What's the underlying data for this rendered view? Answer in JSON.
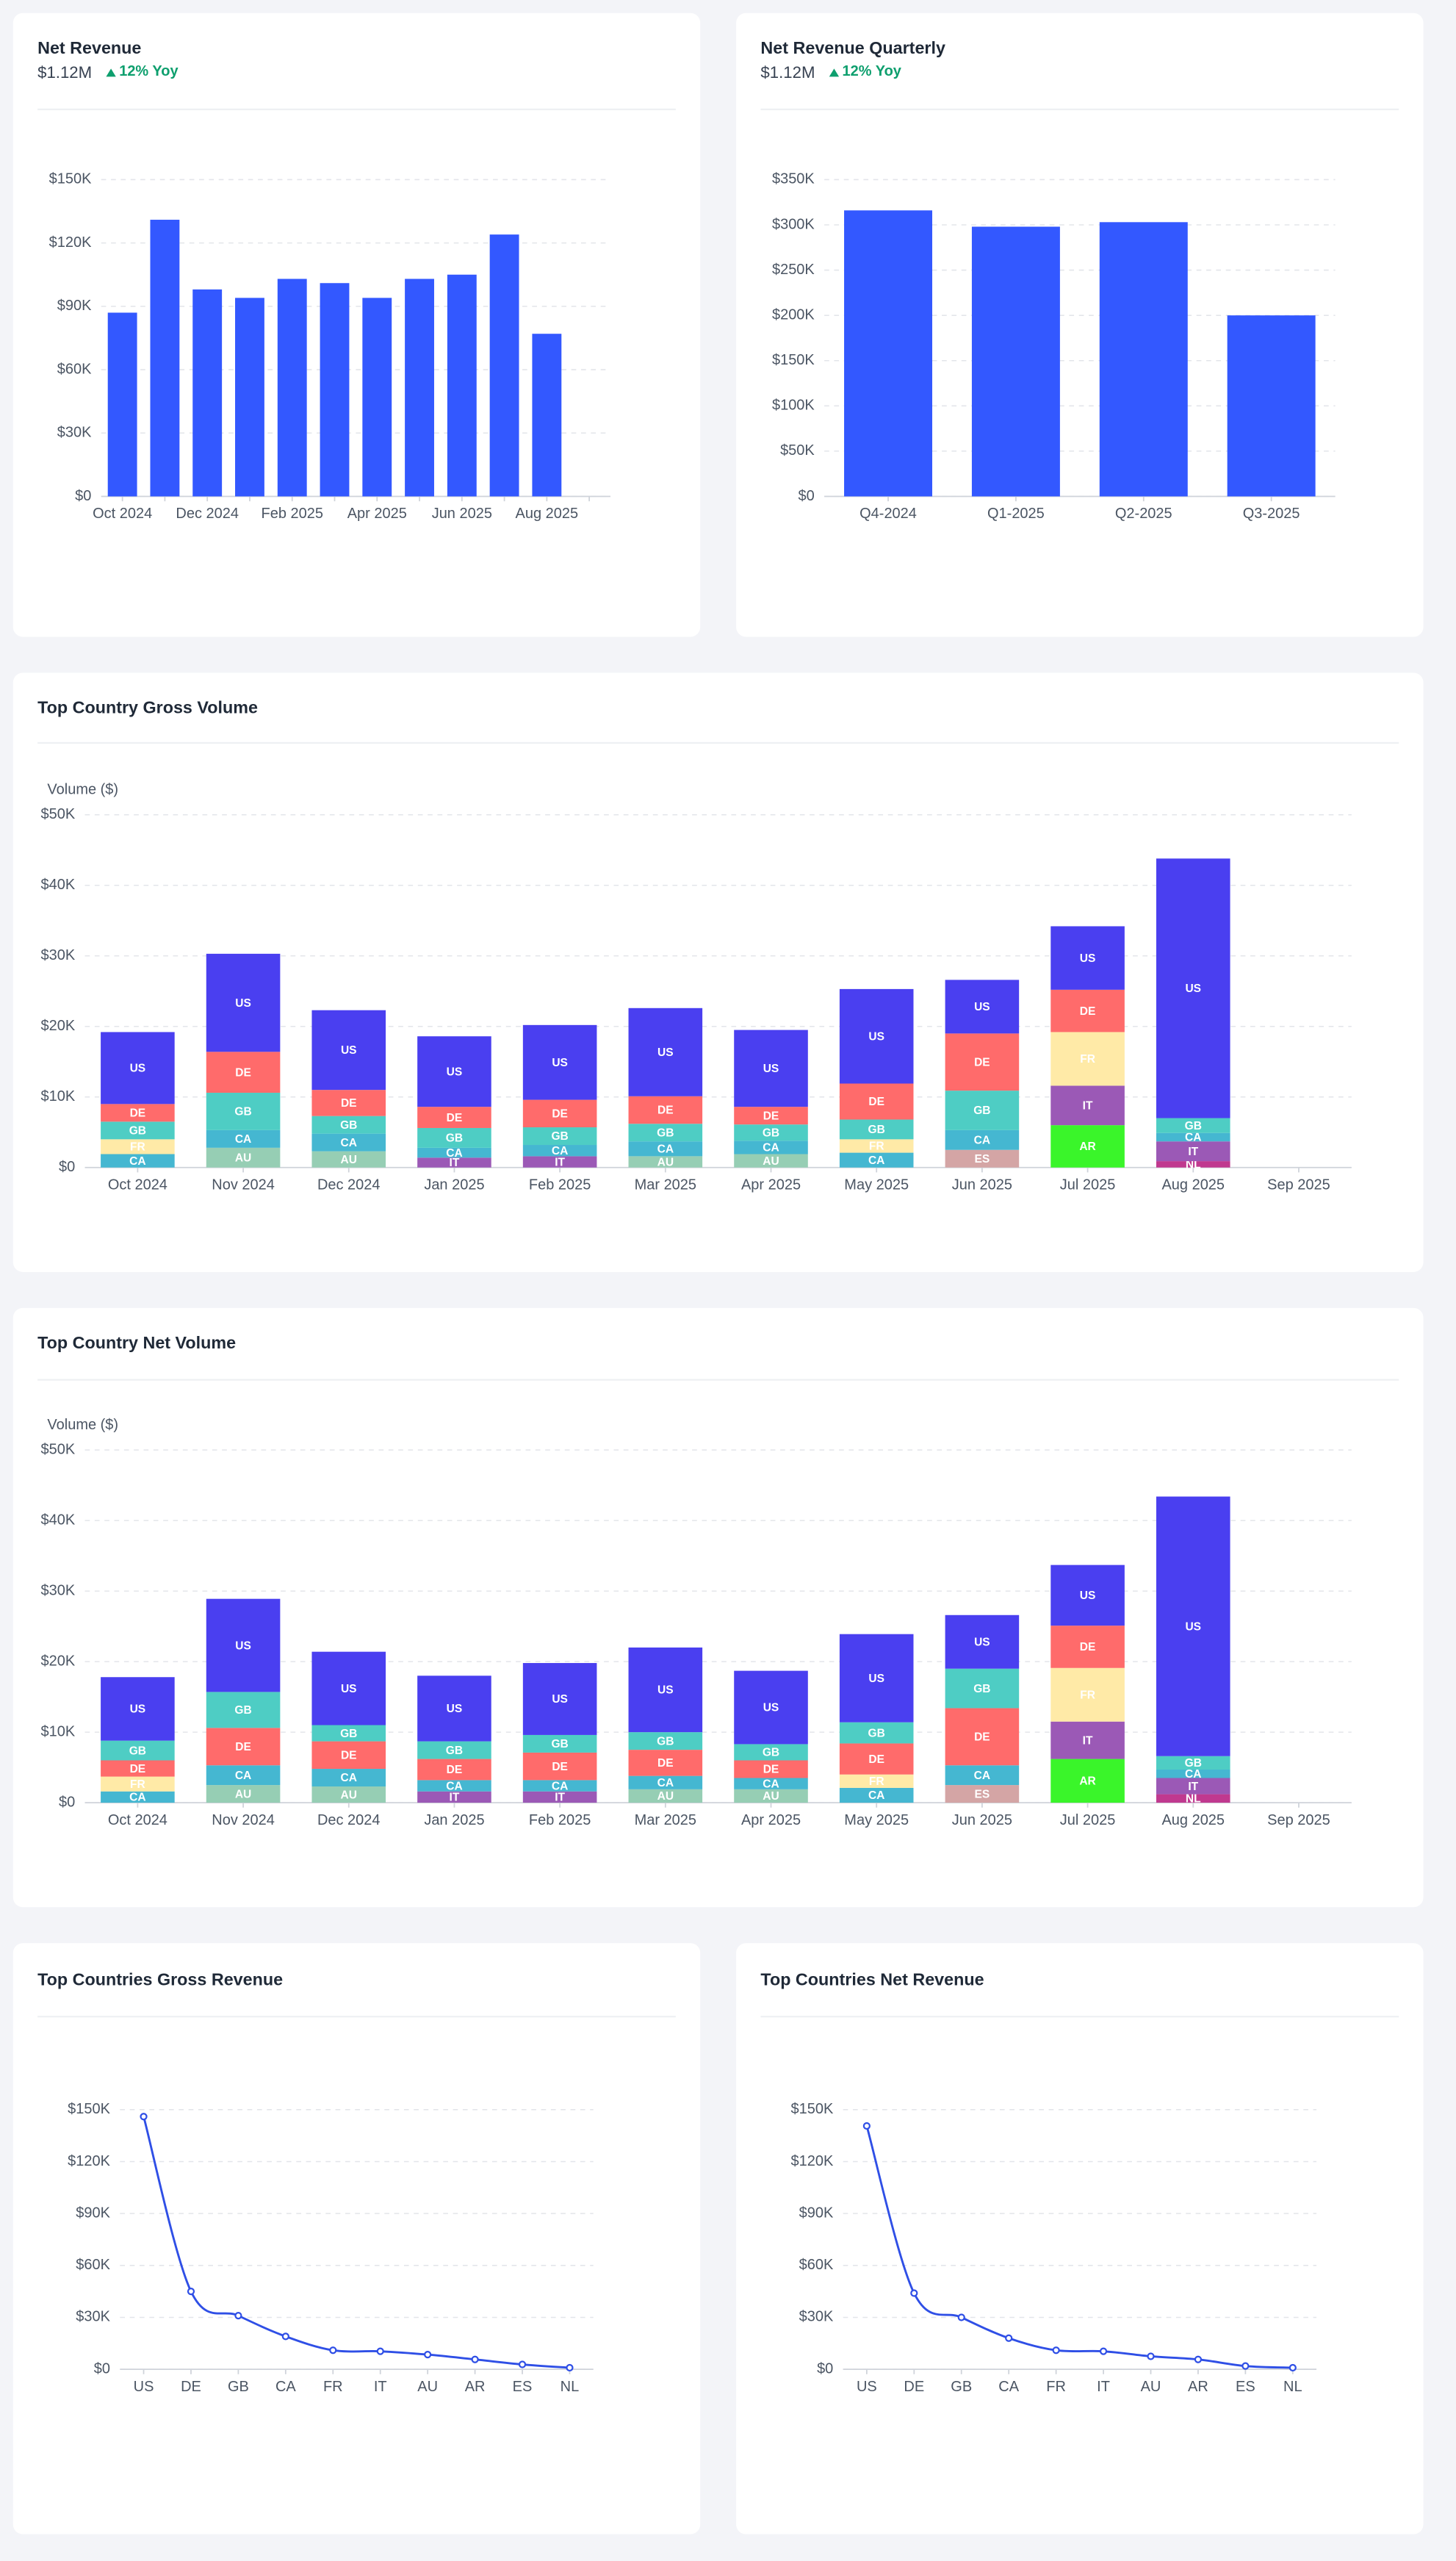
{
  "chart_data": [
    {
      "type": "bar",
      "title": "Net Revenue",
      "subtitle": "$1.12M",
      "change": "12% Yoy",
      "color": "#3358ff",
      "grid": true,
      "categories": [
        "Oct 2024",
        null,
        "Dec 2024",
        null,
        "Feb 2025",
        null,
        "Apr 2025",
        null,
        "Jun 2025",
        null,
        "Aug 2025",
        null
      ],
      "values": [
        87000,
        131000,
        98000,
        94000,
        103000,
        101000,
        94000,
        103000,
        105000,
        124000,
        77000,
        null
      ],
      "ylim": [
        0,
        150000
      ],
      "yticks": [
        {
          "value": 0,
          "label": "$0"
        },
        {
          "value": 30000,
          "label": "$30K"
        },
        {
          "value": 60000,
          "label": "$60K"
        },
        {
          "value": 90000,
          "label": "$90K"
        },
        {
          "value": 120000,
          "label": "$120K"
        },
        {
          "value": 150000,
          "label": "$150K"
        }
      ]
    },
    {
      "type": "bar",
      "title": "Net Revenue Quarterly",
      "subtitle": "$1.12M",
      "change": "12% Yoy",
      "color": "#3358ff",
      "grid": true,
      "categories": [
        "Q4-2024",
        "Q1-2025",
        "Q2-2025",
        "Q3-2025"
      ],
      "values": [
        316000,
        298000,
        303000,
        200000
      ],
      "ylim": [
        0,
        350000
      ],
      "yticks": [
        {
          "value": 0,
          "label": "$0"
        },
        {
          "value": 50000,
          "label": "$50K"
        },
        {
          "value": 100000,
          "label": "$100K"
        },
        {
          "value": 150000,
          "label": "$150K"
        },
        {
          "value": 200000,
          "label": "$200K"
        },
        {
          "value": 250000,
          "label": "$250K"
        },
        {
          "value": 300000,
          "label": "$300K"
        },
        {
          "value": 350000,
          "label": "$350K"
        }
      ]
    },
    {
      "type": "stacked_bar",
      "title": "Top Country Gross Volume",
      "y_label": "Volume ($)",
      "grid": true,
      "categories": [
        "Oct 2024",
        "Nov 2024",
        "Dec 2024",
        "Jan 2025",
        "Feb 2025",
        "Mar 2025",
        "Apr 2025",
        "May 2025",
        "Jun 2025",
        "Jul 2025",
        "Aug 2025",
        "Sep 2025"
      ],
      "series": [
        {
          "name": "NL",
          "color": "#c0398f",
          "values": [
            null,
            null,
            null,
            null,
            null,
            null,
            null,
            null,
            null,
            null,
            900,
            null
          ]
        },
        {
          "name": "ES",
          "color": "#d4a5a5",
          "values": [
            null,
            null,
            null,
            null,
            null,
            null,
            null,
            null,
            2500,
            null,
            null,
            null
          ]
        },
        {
          "name": "AU",
          "color": "#96ceb4",
          "values": [
            null,
            2800,
            2300,
            null,
            null,
            1600,
            1900,
            null,
            null,
            null,
            null,
            null
          ]
        },
        {
          "name": "AR",
          "color": "#3af52a",
          "values": [
            null,
            null,
            null,
            null,
            null,
            null,
            null,
            null,
            null,
            6000,
            null,
            null
          ]
        },
        {
          "name": "IT",
          "color": "#9b59b6",
          "values": [
            null,
            null,
            null,
            1400,
            1600,
            null,
            null,
            null,
            null,
            5600,
            2800,
            null
          ]
        },
        {
          "name": "CA",
          "color": "#45b7d1",
          "values": [
            1900,
            2500,
            2500,
            1400,
            1600,
            2100,
            1900,
            2100,
            2800,
            null,
            1200,
            null
          ]
        },
        {
          "name": "FR",
          "color": "#ffeaa7",
          "values": [
            2100,
            null,
            null,
            null,
            null,
            null,
            null,
            1900,
            null,
            7600,
            null,
            null
          ]
        },
        {
          "name": "GB",
          "color": "#4ecdc4",
          "values": [
            2500,
            5300,
            2500,
            2800,
            2500,
            2500,
            2300,
            2800,
            5600,
            null,
            2100,
            null
          ]
        },
        {
          "name": "DE",
          "color": "#ff6b6b",
          "values": [
            2500,
            5800,
            3700,
            3000,
            3900,
            3900,
            2500,
            5100,
            8100,
            6000,
            null,
            null
          ]
        },
        {
          "name": "US",
          "color": "#4a3ff0",
          "values": [
            10200,
            13900,
            11300,
            10000,
            10600,
            12500,
            10900,
            13400,
            7600,
            9000,
            36800,
            null
          ]
        }
      ],
      "ylim": [
        0,
        50000
      ],
      "yticks": [
        {
          "value": 0,
          "label": "$0"
        },
        {
          "value": 10000,
          "label": "$10K"
        },
        {
          "value": 20000,
          "label": "$20K"
        },
        {
          "value": 30000,
          "label": "$30K"
        },
        {
          "value": 40000,
          "label": "$40K"
        },
        {
          "value": 50000,
          "label": "$50K"
        }
      ]
    },
    {
      "type": "stacked_bar",
      "title": "Top Country Net Volume",
      "y_label": "Volume ($)",
      "grid": true,
      "categories": [
        "Oct 2024",
        "Nov 2024",
        "Dec 2024",
        "Jan 2025",
        "Feb 2025",
        "Mar 2025",
        "Apr 2025",
        "May 2025",
        "Jun 2025",
        "Jul 2025",
        "Aug 2025",
        "Sep 2025"
      ],
      "series": [
        {
          "name": "NL",
          "color": "#c0398f",
          "values": [
            null,
            null,
            null,
            null,
            null,
            null,
            null,
            null,
            null,
            null,
            1200,
            null
          ]
        },
        {
          "name": "ES",
          "color": "#d4a5a5",
          "values": [
            null,
            null,
            null,
            null,
            null,
            null,
            null,
            null,
            2500,
            null,
            null,
            null
          ]
        },
        {
          "name": "AU",
          "color": "#96ceb4",
          "values": [
            null,
            2500,
            2300,
            null,
            null,
            1900,
            1900,
            null,
            null,
            null,
            null,
            null
          ]
        },
        {
          "name": "AR",
          "color": "#3af52a",
          "values": [
            null,
            null,
            null,
            null,
            null,
            null,
            null,
            null,
            null,
            6200,
            null,
            null
          ]
        },
        {
          "name": "IT",
          "color": "#9b59b6",
          "values": [
            null,
            null,
            null,
            1600,
            1600,
            null,
            null,
            null,
            null,
            5300,
            2300,
            null
          ]
        },
        {
          "name": "CA",
          "color": "#45b7d1",
          "values": [
            1600,
            2800,
            2500,
            1600,
            1600,
            1900,
            1600,
            2100,
            2800,
            null,
            1200,
            null
          ]
        },
        {
          "name": "FR",
          "color": "#ffeaa7",
          "values": [
            2100,
            null,
            null,
            null,
            null,
            null,
            null,
            1900,
            null,
            7600,
            null,
            null
          ]
        },
        {
          "name": "DE",
          "color": "#ff6b6b",
          "values": [
            2300,
            5300,
            3900,
            3000,
            3900,
            3700,
            2500,
            4400,
            8100,
            6000,
            null,
            null
          ]
        },
        {
          "name": "GB",
          "color": "#4ecdc4",
          "values": [
            2800,
            5100,
            2300,
            2500,
            2500,
            2500,
            2300,
            3000,
            5600,
            null,
            1900,
            null
          ]
        },
        {
          "name": "US",
          "color": "#4a3ff0",
          "values": [
            9000,
            13200,
            10400,
            9300,
            10200,
            12000,
            10400,
            12500,
            7600,
            8600,
            36800,
            null
          ]
        }
      ],
      "ylim": [
        0,
        50000
      ],
      "yticks": [
        {
          "value": 0,
          "label": "$0"
        },
        {
          "value": 10000,
          "label": "$10K"
        },
        {
          "value": 20000,
          "label": "$20K"
        },
        {
          "value": 30000,
          "label": "$30K"
        },
        {
          "value": 40000,
          "label": "$40K"
        },
        {
          "value": 50000,
          "label": "$50K"
        }
      ]
    },
    {
      "type": "line",
      "title": "Top Countries Gross Revenue",
      "color": "#2f4fe6",
      "grid": true,
      "categories": [
        "US",
        "DE",
        "GB",
        "CA",
        "FR",
        "IT",
        "AU",
        "AR",
        "ES",
        "NL"
      ],
      "values": [
        146000,
        45000,
        31000,
        19000,
        11000,
        10400,
        8500,
        5700,
        2800,
        900
      ],
      "ylim": [
        0,
        150000
      ],
      "yticks": [
        {
          "value": 0,
          "label": "$0"
        },
        {
          "value": 30000,
          "label": "$30K"
        },
        {
          "value": 60000,
          "label": "$60K"
        },
        {
          "value": 90000,
          "label": "$90K"
        },
        {
          "value": 120000,
          "label": "$120K"
        },
        {
          "value": 150000,
          "label": "$150K"
        }
      ]
    },
    {
      "type": "line",
      "title": "Top Countries Net Revenue",
      "color": "#2f4fe6",
      "grid": true,
      "categories": [
        "US",
        "DE",
        "GB",
        "CA",
        "FR",
        "IT",
        "AU",
        "AR",
        "ES",
        "NL"
      ],
      "values": [
        140600,
        44000,
        30000,
        18000,
        11000,
        10400,
        7500,
        5700,
        1900,
        900
      ],
      "ylim": [
        0,
        150000
      ],
      "yticks": [
        {
          "value": 0,
          "label": "$0"
        },
        {
          "value": 30000,
          "label": "$30K"
        },
        {
          "value": 60000,
          "label": "$60K"
        },
        {
          "value": 90000,
          "label": "$90K"
        },
        {
          "value": 120000,
          "label": "$120K"
        },
        {
          "value": 150000,
          "label": "$150K"
        }
      ]
    }
  ]
}
